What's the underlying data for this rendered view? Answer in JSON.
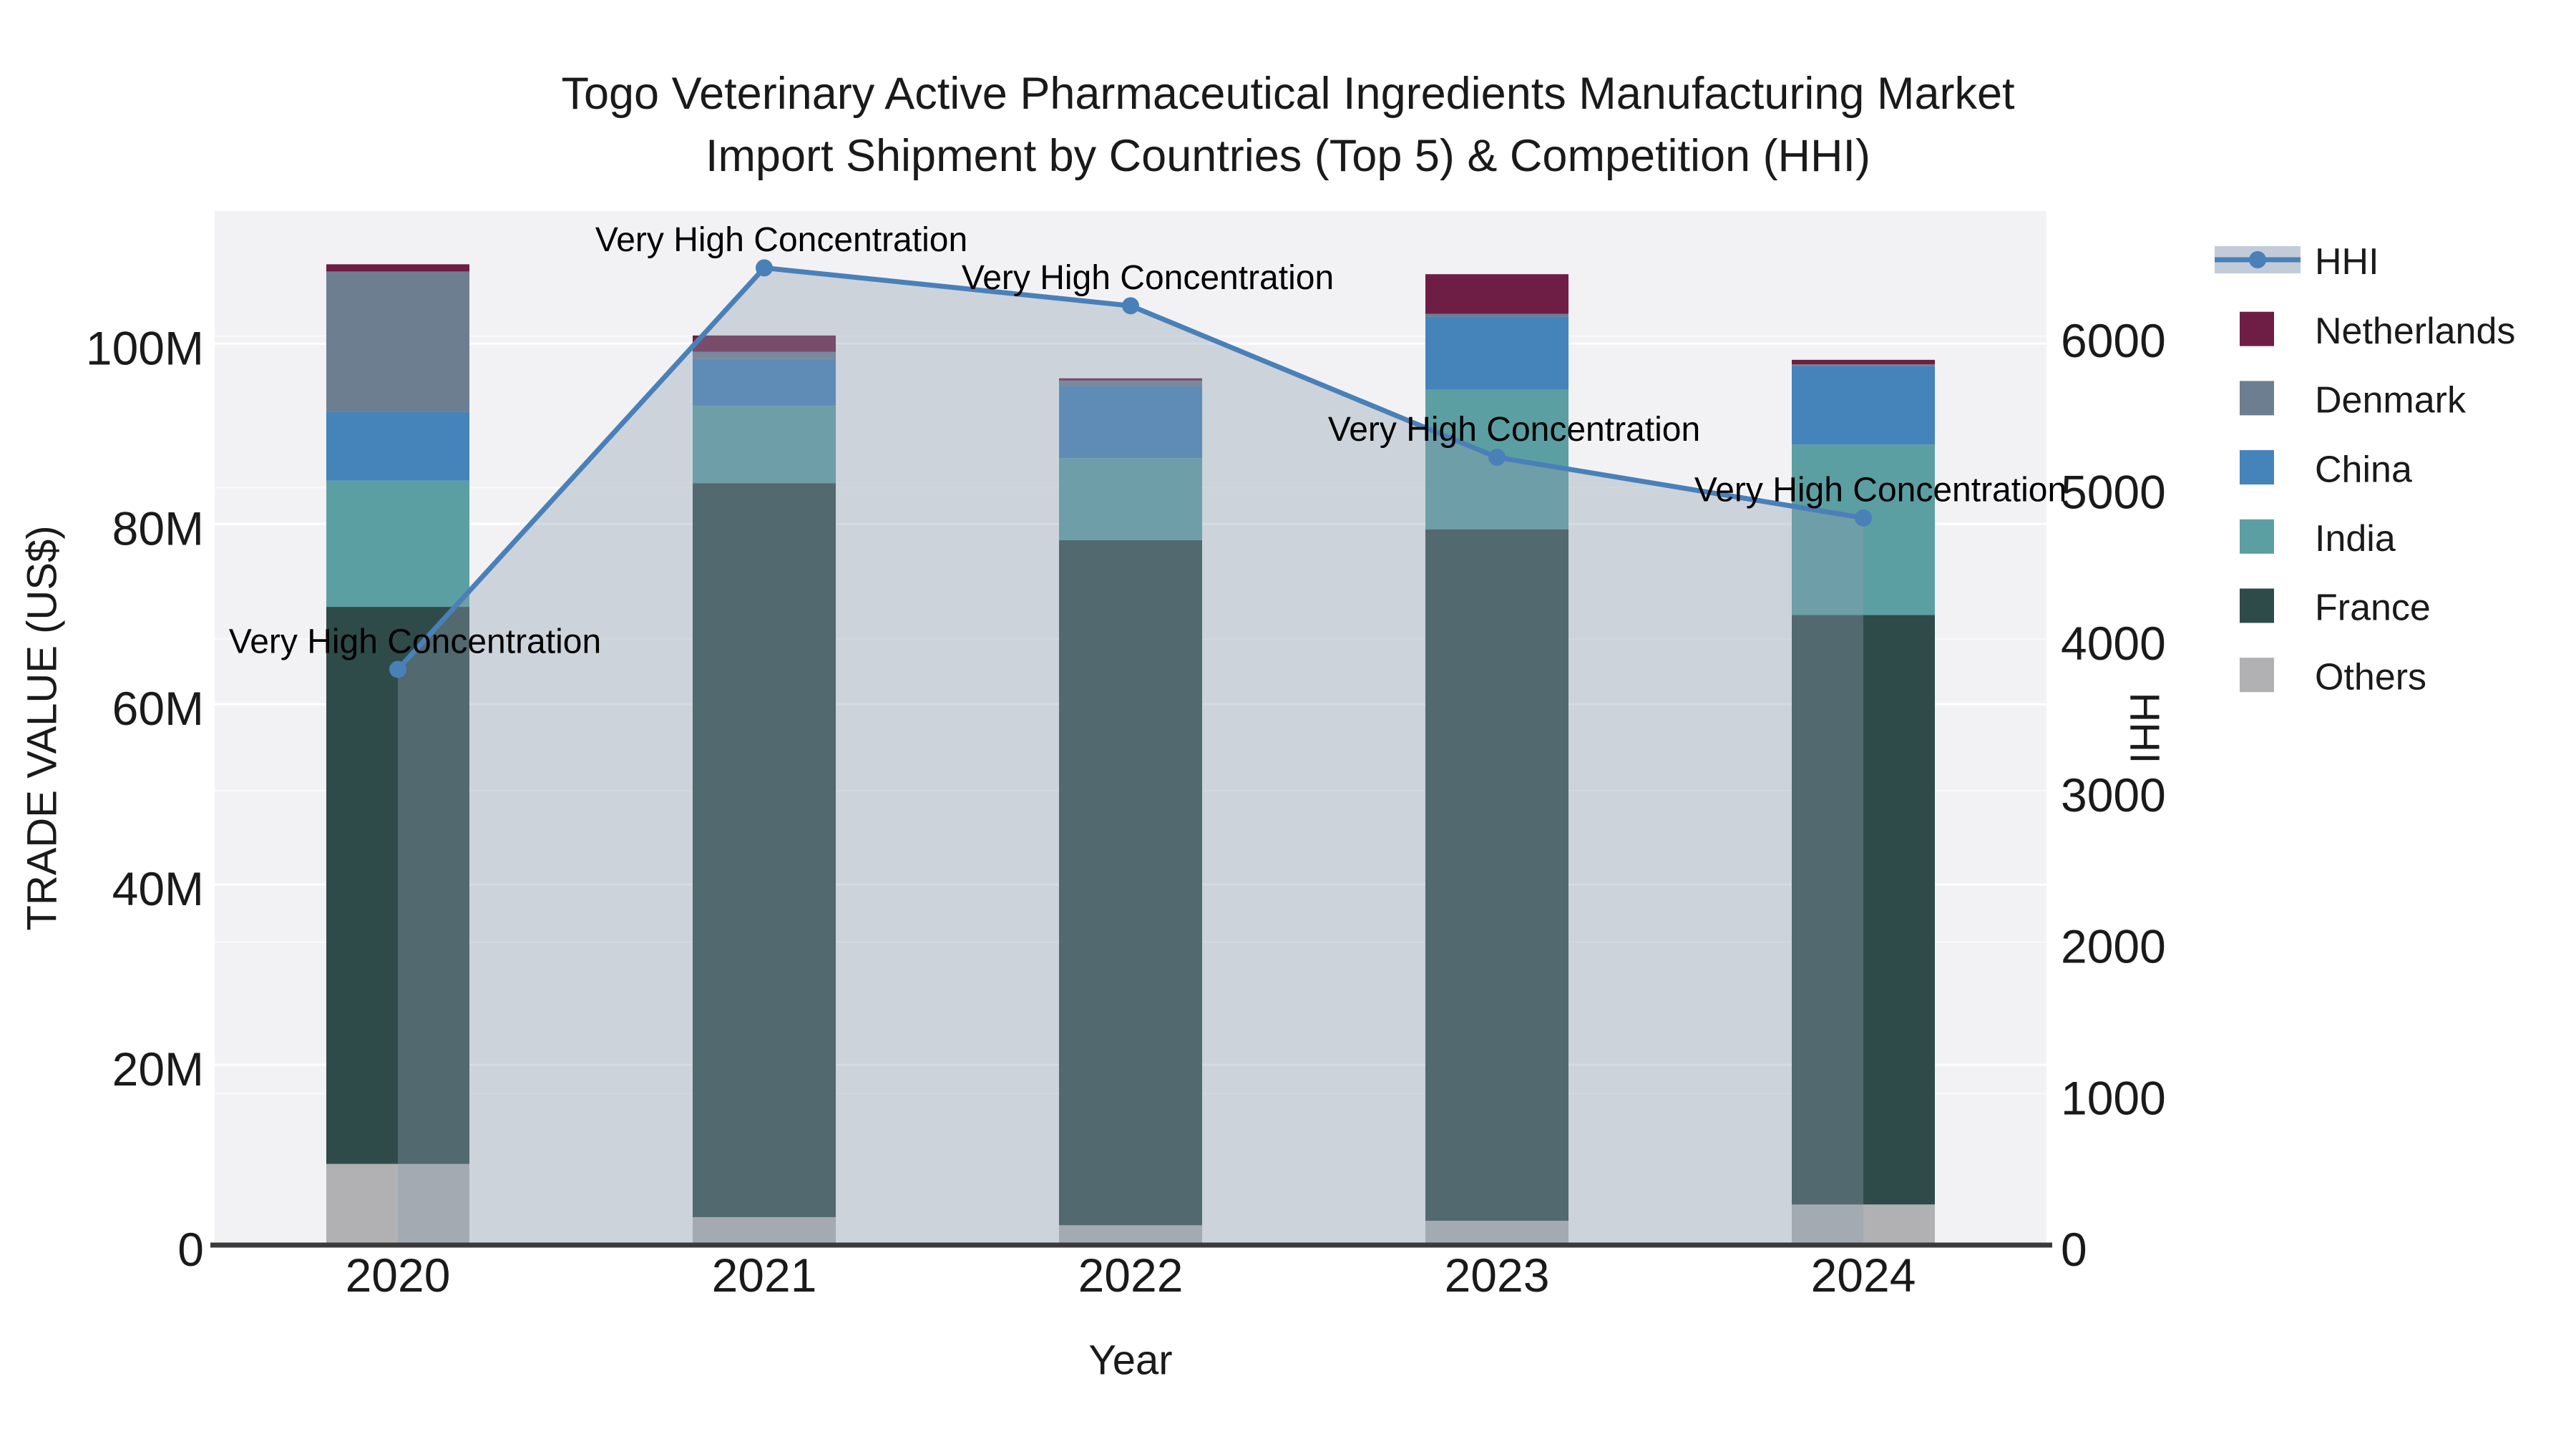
{
  "figure": {
    "title_line1": "Togo Veterinary Active Pharmaceutical Ingredients Manufacturing Market",
    "title_line2": "Import Shipment by Countries (Top 5) & Competition (HHI)"
  },
  "chart_data": {
    "type": "bar",
    "subtype": "stacked-bars-with-line-overlay",
    "title": "Togo Veterinary Active Pharmaceutical Ingredients Manufacturing Market Import Shipment by Countries (Top 5) & Competition (HHI)",
    "xlabel": "Year",
    "ylabel_left": "TRADE VALUE (US$)",
    "ylabel_right": "HHI",
    "categories": [
      "2020",
      "2021",
      "2022",
      "2023",
      "2024"
    ],
    "units_left": "million US$",
    "series": [
      {
        "name": "Others",
        "color": "#B1B1B3",
        "values": [
          9.0,
          3.1,
          2.2,
          2.7,
          4.5
        ]
      },
      {
        "name": "France",
        "color": "#2E4B49",
        "values": [
          61.8,
          81.4,
          76.0,
          76.7,
          65.4
        ]
      },
      {
        "name": "India",
        "color": "#5C9FA3",
        "values": [
          14.0,
          8.6,
          9.1,
          15.5,
          18.9
        ]
      },
      {
        "name": "China",
        "color": "#4583BB",
        "values": [
          7.6,
          5.2,
          8.0,
          8.1,
          8.7
        ]
      },
      {
        "name": "Denmark",
        "color": "#6E7E91",
        "values": [
          15.6,
          0.8,
          0.6,
          0.3,
          0.2
        ]
      },
      {
        "name": "Netherlands",
        "color": "#6E1E45",
        "values": [
          0.8,
          1.8,
          0.25,
          4.4,
          0.5
        ]
      }
    ],
    "line_overlay": {
      "name": "HHI",
      "color": "#4A80B8",
      "area_fill": "rgba(141,156,175,0.37)",
      "values": [
        3800,
        6450,
        6200,
        5200,
        4800
      ],
      "annotations": [
        "Very High Concentration",
        "Very High Concentration",
        "Very High Concentration",
        "Very High Concentration",
        "Very High Concentration"
      ]
    },
    "ylim_left": [
      0,
      114.7
    ],
    "ylim_right": [
      0,
      6825
    ],
    "yticks_left": {
      "values": [
        0,
        20,
        40,
        60,
        80,
        100
      ],
      "labels": [
        "0",
        "20M",
        "40M",
        "60M",
        "80M",
        "100M"
      ]
    },
    "yticks_right": {
      "values": [
        0,
        1000,
        2000,
        3000,
        4000,
        5000,
        6000
      ],
      "labels": [
        "0",
        "1000",
        "2000",
        "3000",
        "4000",
        "5000",
        "6000"
      ]
    },
    "legend": {
      "position": "right",
      "entries": [
        "HHI",
        "Netherlands",
        "Denmark",
        "China",
        "India",
        "France",
        "Others"
      ],
      "hhi_band_color": "#C2CBD8"
    },
    "grid": true
  },
  "colors": {
    "figure_bg": "#ffffff",
    "plot_bg": "#F2F2F4",
    "grid_left": "#FFFFFF",
    "grid_right": "#FAFAFB",
    "axis_line": "#3A3A3A",
    "tick_text": "#1A1A1A",
    "annotation_text": "#000000"
  }
}
